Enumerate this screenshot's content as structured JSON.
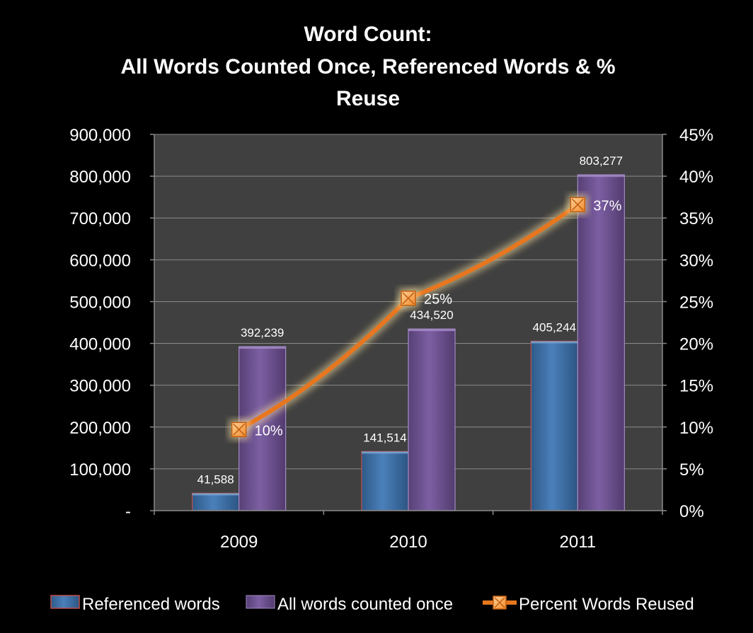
{
  "chart_data": {
    "type": "bar",
    "title_lines": [
      "Word Count:",
      "All Words Counted Once, Referenced Words  & %",
      "Reuse"
    ],
    "categories": [
      "2009",
      "2010",
      "2011"
    ],
    "ylim": [
      0,
      900000
    ],
    "y_ticks": [
      0,
      100000,
      200000,
      300000,
      400000,
      500000,
      600000,
      700000,
      800000,
      900000
    ],
    "y_tick_labels": [
      "-",
      "100,000",
      "200,000",
      "300,000",
      "400,000",
      "500,000",
      "600,000",
      "700,000",
      "800,000",
      "900,000"
    ],
    "y2lim": [
      0,
      45
    ],
    "y2_ticks": [
      0,
      5,
      10,
      15,
      20,
      25,
      30,
      35,
      40,
      45
    ],
    "y2_tick_labels": [
      "0%",
      "5%",
      "10%",
      "15%",
      "20%",
      "25%",
      "30%",
      "35%",
      "40%",
      "45%"
    ],
    "grid": true,
    "legend_position": "bottom",
    "series": [
      {
        "name": "Referenced words",
        "type": "bar",
        "axis": "left",
        "color": "#3c6ea3",
        "values": [
          41588,
          141514,
          405244
        ],
        "labels": [
          "41,588",
          "141,514",
          "405,244"
        ]
      },
      {
        "name": "All words counted once",
        "type": "bar",
        "axis": "left",
        "color": "#6b4f8e",
        "values": [
          392239,
          434520,
          803277
        ],
        "labels": [
          "392,239",
          "434,520",
          "803,277"
        ]
      },
      {
        "name": "Percent Words Reused",
        "type": "line",
        "axis": "right",
        "color": "#e8761e",
        "values": [
          9.7,
          25.4,
          36.6
        ],
        "labels": [
          "10%",
          "25%",
          "37%"
        ]
      }
    ]
  }
}
